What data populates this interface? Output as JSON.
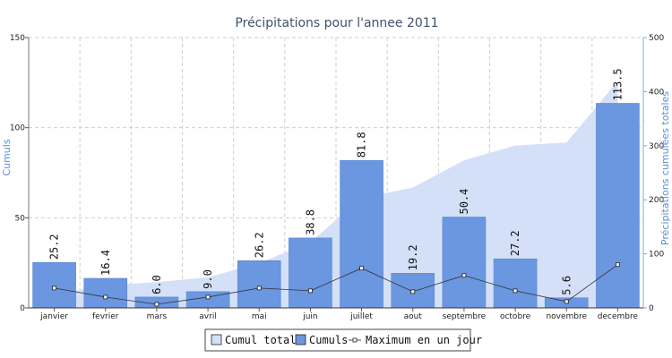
{
  "chart_data": {
    "type": "bar",
    "title": "Précipitations pour l'annee 2011",
    "categories": [
      "janvier",
      "fevrier",
      "mars",
      "avril",
      "mai",
      "juin",
      "juillet",
      "aout",
      "septembre",
      "octobre",
      "novembre",
      "decembre"
    ],
    "series": [
      {
        "name": "Cumuls",
        "type": "bar",
        "axis": "left",
        "color": "#6b96e0",
        "values": [
          25.2,
          16.4,
          6.0,
          9.0,
          26.2,
          38.8,
          81.8,
          19.2,
          50.4,
          27.2,
          5.6,
          113.5
        ]
      },
      {
        "name": "Cumul total",
        "type": "area",
        "axis": "right",
        "color": "#d4e0f8",
        "values": [
          25.2,
          41.6,
          47.6,
          56.6,
          82.8,
          121.6,
          203.4,
          222.6,
          273.0,
          300.2,
          305.8,
          419.3
        ]
      },
      {
        "name": "Maximum en un jour",
        "type": "line",
        "axis": "left",
        "color": "#333333",
        "values": [
          11.0,
          6.0,
          2.0,
          6.0,
          11.0,
          9.5,
          22.0,
          9.0,
          18.0,
          9.5,
          3.5,
          24.0
        ]
      }
    ],
    "ylabel": "Cumuls",
    "y2label": "Précipitations cumulées totales",
    "ylim": [
      0,
      150
    ],
    "y2lim": [
      0,
      500
    ],
    "yticks": [
      "0",
      "50",
      "100",
      "150"
    ],
    "y2ticks": [
      "0",
      "100",
      "200",
      "300",
      "400",
      "500"
    ],
    "grid": true,
    "legend_position": "bottom-center"
  }
}
